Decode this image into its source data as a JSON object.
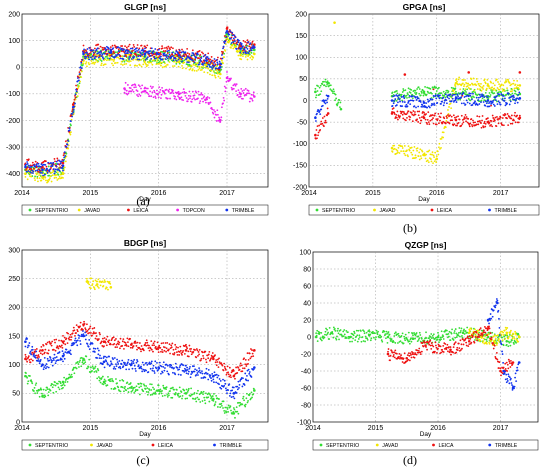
{
  "colors": {
    "SEPTENTRIO": "#33dd33",
    "JAVAD": "#f2e600",
    "LEICA": "#ee1111",
    "TOPCON": "#ee22ee",
    "TRIMBLE": "#1133ee"
  },
  "chart_data": [
    {
      "type": "scatter",
      "title": "GLGP [ns]",
      "xlabel": "Day",
      "panel_label": "(a)",
      "xlim": [
        2014,
        2017.6
      ],
      "ylim": [
        -450,
        200
      ],
      "yticks": [
        200,
        100,
        0,
        -100,
        -200,
        -300,
        -400
      ],
      "xticks": [
        2014,
        2015,
        2016,
        2017
      ],
      "grid": true,
      "legend_placement": "bottom",
      "series": [
        {
          "name": "SEPTENTRIO",
          "values": [
            [
              2014.05,
              -385
            ],
            [
              2014.3,
              -395
            ],
            [
              2014.6,
              -380
            ],
            [
              2014.75,
              -160
            ],
            [
              2014.9,
              40
            ],
            [
              2015.3,
              45
            ],
            [
              2015.8,
              40
            ],
            [
              2016.3,
              35
            ],
            [
              2016.7,
              15
            ],
            [
              2016.9,
              -10
            ],
            [
              2017.0,
              125
            ],
            [
              2017.2,
              60
            ],
            [
              2017.4,
              65
            ]
          ]
        },
        {
          "name": "JAVAD",
          "values": [
            [
              2014.05,
              -400
            ],
            [
              2014.3,
              -415
            ],
            [
              2014.6,
              -400
            ],
            [
              2014.75,
              -175
            ],
            [
              2014.9,
              25
            ],
            [
              2015.3,
              30
            ],
            [
              2015.8,
              25
            ],
            [
              2016.3,
              20
            ],
            [
              2016.7,
              0
            ],
            [
              2016.9,
              -25
            ],
            [
              2017.0,
              110
            ],
            [
              2017.2,
              45
            ],
            [
              2017.4,
              50
            ]
          ]
        },
        {
          "name": "LEICA",
          "values": [
            [
              2014.05,
              -365
            ],
            [
              2014.3,
              -375
            ],
            [
              2014.6,
              -360
            ],
            [
              2014.75,
              -140
            ],
            [
              2014.9,
              60
            ],
            [
              2015.3,
              65
            ],
            [
              2015.8,
              60
            ],
            [
              2016.3,
              55
            ],
            [
              2016.7,
              35
            ],
            [
              2016.9,
              10
            ],
            [
              2017.0,
              145
            ],
            [
              2017.2,
              80
            ],
            [
              2017.4,
              85
            ]
          ]
        },
        {
          "name": "TOPCON",
          "values": [
            [
              2015.5,
              -80
            ],
            [
              2015.8,
              -90
            ],
            [
              2016.3,
              -100
            ],
            [
              2016.7,
              -120
            ],
            [
              2016.9,
              -200
            ],
            [
              2017.0,
              -40
            ],
            [
              2017.2,
              -100
            ],
            [
              2017.4,
              -110
            ]
          ]
        },
        {
          "name": "TRIMBLE",
          "values": [
            [
              2014.05,
              -375
            ],
            [
              2014.3,
              -385
            ],
            [
              2014.6,
              -370
            ],
            [
              2014.75,
              -150
            ],
            [
              2014.9,
              50
            ],
            [
              2015.3,
              55
            ],
            [
              2015.8,
              50
            ],
            [
              2016.3,
              45
            ],
            [
              2016.7,
              25
            ],
            [
              2016.9,
              0
            ],
            [
              2017.0,
              135
            ],
            [
              2017.2,
              70
            ],
            [
              2017.4,
              75
            ]
          ]
        }
      ]
    },
    {
      "type": "scatter",
      "title": "GPGA [ns]",
      "xlabel": "Day",
      "panel_label": "(b)",
      "xlim": [
        2014,
        2017.6
      ],
      "ylim": [
        -200,
        200
      ],
      "yticks": [
        200,
        150,
        100,
        50,
        0,
        -50,
        -100,
        -150,
        -200
      ],
      "xticks": [
        2014,
        2015,
        2016,
        2017
      ],
      "grid": true,
      "legend_placement": "bottom",
      "series": [
        {
          "name": "SEPTENTRIO",
          "values": [
            [
              2014.1,
              20
            ],
            [
              2014.3,
              40
            ],
            [
              2014.5,
              -20
            ],
            [
              2015.3,
              10
            ],
            [
              2015.8,
              20
            ],
            [
              2016.3,
              15
            ],
            [
              2016.8,
              10
            ],
            [
              2017.3,
              15
            ]
          ]
        },
        {
          "name": "JAVAD",
          "values": [
            [
              2014.4,
              180
            ],
            [
              2015.3,
              -110
            ],
            [
              2015.8,
              -125
            ],
            [
              2016.0,
              -135
            ],
            [
              2016.3,
              40
            ],
            [
              2016.8,
              35
            ],
            [
              2017.3,
              35
            ]
          ]
        },
        {
          "name": "LEICA",
          "values": [
            [
              2014.1,
              -80
            ],
            [
              2014.3,
              -30
            ],
            [
              2015.3,
              -30
            ],
            [
              2015.8,
              -40
            ],
            [
              2016.3,
              -45
            ],
            [
              2016.8,
              -50
            ],
            [
              2017.3,
              -40
            ],
            [
              2015.5,
              60
            ],
            [
              2016.5,
              65
            ],
            [
              2017.3,
              65
            ]
          ]
        },
        {
          "name": "TRIMBLE",
          "values": [
            [
              2014.1,
              -40
            ],
            [
              2014.3,
              10
            ],
            [
              2015.3,
              0
            ],
            [
              2015.8,
              -5
            ],
            [
              2016.3,
              5
            ],
            [
              2016.8,
              0
            ],
            [
              2017.3,
              5
            ]
          ]
        }
      ]
    },
    {
      "type": "scatter",
      "title": "BDGP [ns]",
      "xlabel": "Day",
      "panel_label": "(c)",
      "xlim": [
        2014,
        2017.6
      ],
      "ylim": [
        0,
        300
      ],
      "yticks": [
        300,
        250,
        200,
        150,
        100,
        50,
        0
      ],
      "xticks": [
        2014,
        2015,
        2016,
        2017
      ],
      "grid": true,
      "legend_placement": "bottom",
      "series": [
        {
          "name": "SEPTENTRIO",
          "values": [
            [
              2014.05,
              80
            ],
            [
              2014.3,
              45
            ],
            [
              2014.6,
              70
            ],
            [
              2014.9,
              110
            ],
            [
              2015.2,
              70
            ],
            [
              2015.6,
              60
            ],
            [
              2016.0,
              55
            ],
            [
              2016.4,
              50
            ],
            [
              2016.8,
              40
            ],
            [
              2017.1,
              15
            ],
            [
              2017.4,
              55
            ]
          ]
        },
        {
          "name": "JAVAD",
          "values": [
            [
              2014.95,
              245
            ],
            [
              2015.1,
              240
            ],
            [
              2015.3,
              235
            ]
          ]
        },
        {
          "name": "LEICA",
          "values": [
            [
              2014.05,
              110
            ],
            [
              2014.3,
              125
            ],
            [
              2014.6,
              140
            ],
            [
              2014.9,
              170
            ],
            [
              2015.2,
              140
            ],
            [
              2015.6,
              135
            ],
            [
              2016.0,
              130
            ],
            [
              2016.4,
              125
            ],
            [
              2016.8,
              110
            ],
            [
              2017.1,
              80
            ],
            [
              2017.4,
              125
            ]
          ]
        },
        {
          "name": "TRIMBLE",
          "values": [
            [
              2014.05,
              140
            ],
            [
              2014.3,
              100
            ],
            [
              2014.6,
              115
            ],
            [
              2014.9,
              150
            ],
            [
              2015.2,
              105
            ],
            [
              2015.6,
              100
            ],
            [
              2016.0,
              95
            ],
            [
              2016.4,
              90
            ],
            [
              2016.8,
              80
            ],
            [
              2017.1,
              50
            ],
            [
              2017.4,
              95
            ]
          ]
        }
      ]
    },
    {
      "type": "scatter",
      "title": "QZGP [ns]",
      "xlabel": "Day",
      "panel_label": "(d)",
      "xlim": [
        2014,
        2017.6
      ],
      "ylim": [
        -100,
        100
      ],
      "yticks": [
        100,
        80,
        60,
        40,
        20,
        0,
        -20,
        -40,
        -60,
        -80,
        -100
      ],
      "xticks": [
        2014,
        2015,
        2016,
        2017
      ],
      "grid": true,
      "legend_placement": "bottom",
      "series": [
        {
          "name": "SEPTENTRIO",
          "values": [
            [
              2014.05,
              0
            ],
            [
              2014.3,
              5
            ],
            [
              2014.6,
              0
            ],
            [
              2014.9,
              2
            ],
            [
              2015.2,
              0
            ],
            [
              2015.6,
              -2
            ],
            [
              2016.0,
              0
            ],
            [
              2016.4,
              5
            ],
            [
              2016.8,
              0
            ],
            [
              2017.1,
              -5
            ],
            [
              2017.3,
              0
            ]
          ]
        },
        {
          "name": "JAVAD",
          "values": [
            [
              2016.5,
              5
            ],
            [
              2016.7,
              0
            ],
            [
              2016.9,
              -5
            ],
            [
              2017.1,
              5
            ],
            [
              2017.3,
              0
            ]
          ]
        },
        {
          "name": "LEICA",
          "values": [
            [
              2015.2,
              -20
            ],
            [
              2015.5,
              -25
            ],
            [
              2015.8,
              -10
            ],
            [
              2016.2,
              -15
            ],
            [
              2016.5,
              -5
            ],
            [
              2016.8,
              10
            ],
            [
              2017.0,
              -40
            ],
            [
              2017.2,
              -30
            ]
          ]
        },
        {
          "name": "TRIMBLE",
          "values": [
            [
              2016.8,
              20
            ],
            [
              2016.95,
              40
            ],
            [
              2017.05,
              -40
            ],
            [
              2017.2,
              -60
            ],
            [
              2017.3,
              -30
            ]
          ]
        }
      ]
    }
  ]
}
